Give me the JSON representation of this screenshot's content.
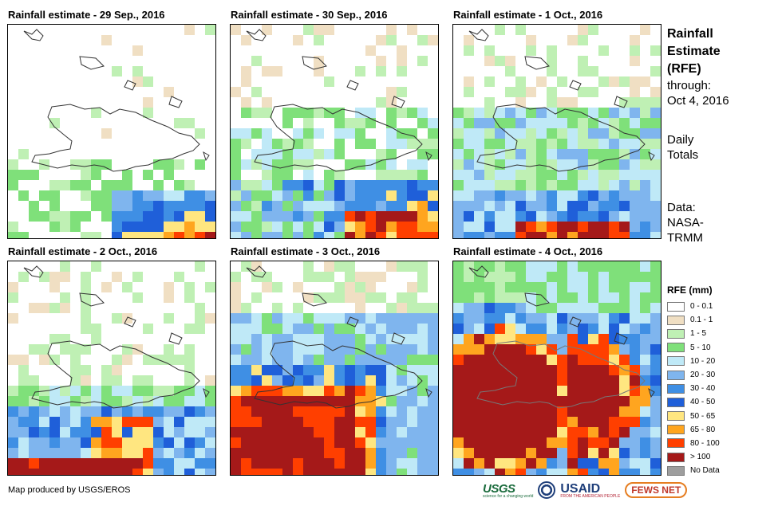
{
  "panels": [
    {
      "title": "Rainfall estimate - 29 Sep., 2016"
    },
    {
      "title": "Rainfall estimate - 30 Sep., 2016"
    },
    {
      "title": "Rainfall estimate - 1 Oct., 2016"
    },
    {
      "title": "Rainfall estimate - 2 Oct., 2016"
    },
    {
      "title": "Rainfall estimate - 3 Oct., 2016"
    },
    {
      "title": "Rainfall estimate - 4 Oct., 2016"
    }
  ],
  "side": {
    "title": [
      "Rainfall",
      "Estimate",
      "(RFE)"
    ],
    "through_label": "through:",
    "through_date": "Oct 4, 2016",
    "totals": [
      "Daily",
      "Totals"
    ],
    "data_source": [
      "Data:",
      "NASA-",
      "TRMM"
    ]
  },
  "legend": {
    "title": "RFE (mm)",
    "classes": [
      {
        "label": "0 - 0.1",
        "color": "#ffffff"
      },
      {
        "label": "0.1 - 1",
        "color": "#f0dfc3"
      },
      {
        "label": "1 - 5",
        "color": "#bff0b4"
      },
      {
        "label": "5 - 10",
        "color": "#7fe07a"
      },
      {
        "label": "10 - 20",
        "color": "#bfe9f7"
      },
      {
        "label": "20 - 30",
        "color": "#7fb5ee"
      },
      {
        "label": "30 - 40",
        "color": "#3f8fe4"
      },
      {
        "label": "40 - 50",
        "color": "#1f5fd9"
      },
      {
        "label": "50 - 65",
        "color": "#ffe680"
      },
      {
        "label": "65 - 80",
        "color": "#ffa51f"
      },
      {
        "label": "80 - 100",
        "color": "#ff3f00"
      },
      {
        "label": "> 100",
        "color": "#a51919"
      },
      {
        "label": "No Data",
        "color": "#9e9e9e"
      }
    ]
  },
  "credit": "Map produced by USGS/EROS",
  "logos": {
    "usgs": "USGS",
    "usgs_tagline": "science for a changing world",
    "usaid": "USAID",
    "usaid_tagline": "FROM THE AMERICAN PEOPLE",
    "fewsnet": "FEWS NET"
  }
}
